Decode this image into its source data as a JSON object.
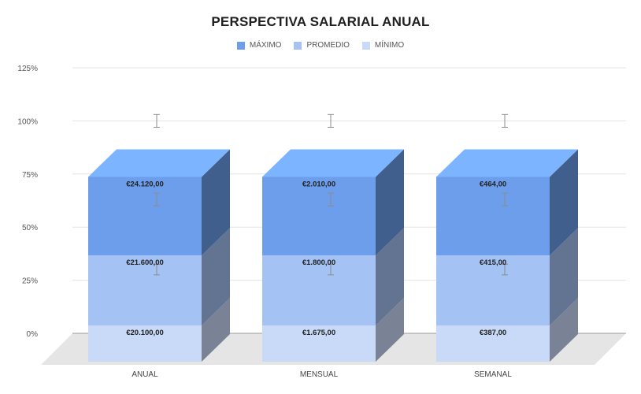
{
  "chart_data": {
    "type": "bar",
    "stacked": true,
    "style": "3d",
    "title": "PERSPECTIVA SALARIAL ANUAL",
    "categories": [
      "ANUAL",
      "MENSUAL",
      "SEMANAL"
    ],
    "series": [
      {
        "name": "MÍNIMO",
        "color": "#c9daf8",
        "values": [
          17,
          17,
          17
        ],
        "data_labels": [
          "€20.100,00",
          "€1.675,00",
          "€387,00"
        ],
        "error_center": [
          30,
          30,
          30
        ],
        "error_range": [
          2.5,
          2.5,
          2.5
        ]
      },
      {
        "name": "PROMEDIO",
        "color": "#a4c2f4",
        "values": [
          33,
          33,
          33
        ],
        "data_labels": [
          "€21.600,00",
          "€1.800,00",
          "€415,00"
        ],
        "error_center": [
          63,
          63,
          63
        ],
        "error_range": [
          3,
          3,
          3
        ]
      },
      {
        "name": "MÁXIMO",
        "color": "#6d9eeb",
        "values": [
          37,
          37,
          37
        ],
        "data_labels": [
          "€24.120,00",
          "€2.010,00",
          "€464,00"
        ],
        "error_center": [
          100,
          100,
          100
        ],
        "error_range": [
          3,
          3,
          3
        ]
      }
    ],
    "legend_order": [
      "MÁXIMO",
      "PROMEDIO",
      "MÍNIMO"
    ],
    "y_ticks": [
      0,
      25,
      50,
      75,
      100,
      125
    ],
    "y_tick_labels": [
      "0%",
      "25%",
      "50%",
      "75%",
      "100%",
      "125%"
    ],
    "ylim": [
      0,
      125
    ],
    "xlabel": "",
    "ylabel": "",
    "grid": true,
    "legend_position": "top"
  }
}
